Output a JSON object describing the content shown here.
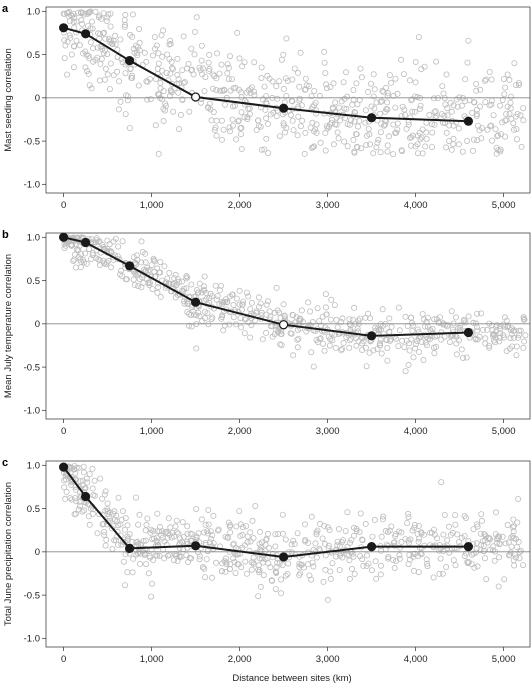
{
  "colors": {
    "scatter": "#bdbdbd",
    "mean": "#1a1a1a",
    "frame": "#444444"
  },
  "figure": {
    "xlabel": "Distance between sites (km)",
    "xticks": [
      "0",
      "1,000",
      "2,000",
      "3,000",
      "4,000",
      "5,000"
    ],
    "yticks": [
      "1.0",
      "0.5",
      "0",
      "-0.5",
      "-1.0"
    ]
  },
  "chart_data": [
    {
      "type": "scatter",
      "panel": "a",
      "title": "",
      "xlabel": "",
      "ylabel": "Mast seeding correlation",
      "xlim": [
        -200,
        5300
      ],
      "ylim": [
        -1.1,
        1.05
      ],
      "grid": false,
      "scatter_note_points": 900,
      "mean_series": {
        "x": [
          0,
          250,
          750,
          1500,
          2500,
          3500,
          4600
        ],
        "y": [
          0.81,
          0.74,
          0.43,
          0.01,
          -0.12,
          -0.23,
          -0.27
        ],
        "filled": [
          true,
          true,
          true,
          false,
          true,
          true,
          true
        ]
      },
      "scatter_trend": [
        [
          0,
          0.8
        ],
        [
          500,
          0.6
        ],
        [
          1000,
          0.3
        ],
        [
          1500,
          0.1
        ],
        [
          2000,
          -0.05
        ],
        [
          3000,
          -0.15
        ],
        [
          4000,
          -0.22
        ],
        [
          5000,
          -0.25
        ],
        [
          5200,
          -0.25
        ]
      ],
      "scatter_spread": 0.38
    },
    {
      "type": "scatter",
      "panel": "b",
      "title": "",
      "xlabel": "",
      "ylabel": "Mean July temperature correlation",
      "xlim": [
        -200,
        5300
      ],
      "ylim": [
        -1.1,
        1.05
      ],
      "grid": false,
      "mean_series": {
        "x": [
          0,
          250,
          750,
          1500,
          2500,
          3500,
          4600
        ],
        "y": [
          1.0,
          0.94,
          0.67,
          0.25,
          -0.01,
          -0.14,
          -0.1
        ],
        "filled": [
          true,
          true,
          true,
          true,
          false,
          true,
          true
        ]
      },
      "scatter_trend": [
        [
          0,
          1.0
        ],
        [
          250,
          0.93
        ],
        [
          750,
          0.7
        ],
        [
          1200,
          0.45
        ],
        [
          1500,
          0.28
        ],
        [
          2000,
          0.12
        ],
        [
          2500,
          0.0
        ],
        [
          3000,
          -0.08
        ],
        [
          3500,
          -0.13
        ],
        [
          4000,
          -0.14
        ],
        [
          4600,
          -0.11
        ],
        [
          5200,
          -0.15
        ]
      ],
      "scatter_spread": 0.16
    },
    {
      "type": "scatter",
      "panel": "c",
      "title": "",
      "xlabel": "Distance between sites (km)",
      "ylabel": "Total June precipitation correlation",
      "xlim": [
        -200,
        5300
      ],
      "ylim": [
        -1.1,
        1.05
      ],
      "grid": false,
      "mean_series": {
        "x": [
          0,
          250,
          750,
          1500,
          2500,
          3500,
          4600
        ],
        "y": [
          0.98,
          0.64,
          0.04,
          0.07,
          -0.06,
          0.06,
          0.06
        ],
        "filled": [
          true,
          true,
          true,
          true,
          true,
          true,
          true
        ]
      },
      "scatter_trend": [
        [
          0,
          0.95
        ],
        [
          250,
          0.65
        ],
        [
          500,
          0.35
        ],
        [
          750,
          0.1
        ],
        [
          1000,
          0.08
        ],
        [
          1500,
          0.07
        ],
        [
          2500,
          -0.05
        ],
        [
          3500,
          0.06
        ],
        [
          4600,
          0.06
        ],
        [
          5200,
          0.1
        ]
      ],
      "scatter_spread": 0.22
    }
  ]
}
